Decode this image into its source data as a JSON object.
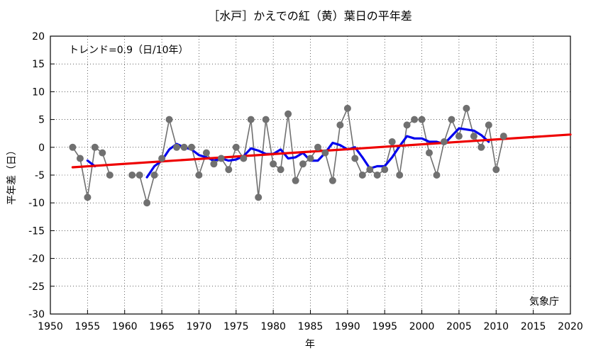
{
  "chart_data": {
    "type": "line",
    "title": "［水戸］かえでの紅（黄）葉日の平年差",
    "xlabel": "年",
    "ylabel": "平年差（日）",
    "annotation": "トレンド=0.9（日/10年）",
    "source": "気象庁",
    "xlim": [
      1950,
      2020
    ],
    "ylim": [
      -30,
      20
    ],
    "x_ticks": [
      1950,
      1955,
      1960,
      1965,
      1970,
      1975,
      1980,
      1985,
      1990,
      1995,
      2000,
      2005,
      2010,
      2015,
      2020
    ],
    "y_ticks": [
      20,
      15,
      10,
      5,
      0,
      -5,
      -10,
      -15,
      -20,
      -25,
      -30
    ],
    "grid": true,
    "colors": {
      "observed": "#707070",
      "moving_avg": "#0000ee",
      "trend": "#ee0000"
    },
    "series": [
      {
        "role": "observed",
        "x": [
          1953,
          1954,
          1955,
          1956,
          1957,
          1958,
          null,
          1961,
          1962,
          1963,
          1964,
          1965,
          1966,
          1967,
          1968,
          1969,
          1970,
          1971,
          1972,
          1973,
          1974,
          1975,
          1976,
          1977,
          1978,
          1979,
          1980,
          1981,
          1982,
          1983,
          1984,
          1985,
          1986,
          1987,
          1988,
          1989,
          1990,
          1991,
          1992,
          1993,
          1994,
          1995,
          1996,
          1997,
          1998,
          1999,
          2000,
          2001,
          2002,
          2003,
          2004,
          2005,
          2006,
          2007,
          2008,
          2009,
          2010,
          2011
        ],
        "values": [
          0,
          -2,
          -9,
          0,
          -1,
          -5,
          null,
          -5,
          -5,
          -10,
          -5,
          -2,
          5,
          0,
          0,
          0,
          -5,
          -1,
          -3,
          -2,
          -4,
          0,
          -2,
          5,
          -9,
          5,
          -3,
          -4,
          6,
          -6,
          -3,
          -2,
          0,
          -1,
          -6,
          4,
          7,
          -2,
          -5,
          -4,
          -5,
          -4,
          1,
          -5,
          4,
          5,
          5,
          -1,
          -5,
          1,
          5,
          2,
          7,
          2,
          0,
          4,
          -4,
          2
        ]
      },
      {
        "role": "moving_avg",
        "x": [
          1955,
          1956,
          null,
          1963,
          1964,
          1965,
          1966,
          1967,
          1968,
          1969,
          1970,
          1971,
          1972,
          1973,
          1974,
          1975,
          1976,
          1977,
          1978,
          1979,
          1980,
          1981,
          1982,
          1983,
          1984,
          1985,
          1986,
          1987,
          1988,
          1989,
          1990,
          1991,
          1992,
          1993,
          1994,
          1995,
          1996,
          1997,
          1998,
          1999,
          2000,
          2001,
          2002,
          2003,
          2004,
          2005,
          2006,
          2007,
          2008,
          2009
        ],
        "values": [
          -2.4,
          -3.4,
          null,
          -5.4,
          -3.4,
          -2.4,
          -0.4,
          0.6,
          0,
          -0.4,
          -1.4,
          -1.8,
          -2.4,
          -2,
          -2.4,
          -2.2,
          -1.6,
          -0.2,
          -0.6,
          -1.2,
          -1.2,
          -0.4,
          -2,
          -1.8,
          -1,
          -2.4,
          -2.4,
          -1,
          0.8,
          0.4,
          -0.4,
          0,
          -1.8,
          -3.8,
          -3.4,
          -3.4,
          -1.8,
          0.2,
          2,
          1.6,
          1.6,
          1,
          1,
          0.6,
          2,
          3.4,
          3.2,
          3,
          2.2,
          1
        ]
      },
      {
        "role": "trend",
        "x": [
          1953,
          2020
        ],
        "values": [
          -3.6,
          2.3
        ]
      }
    ]
  }
}
